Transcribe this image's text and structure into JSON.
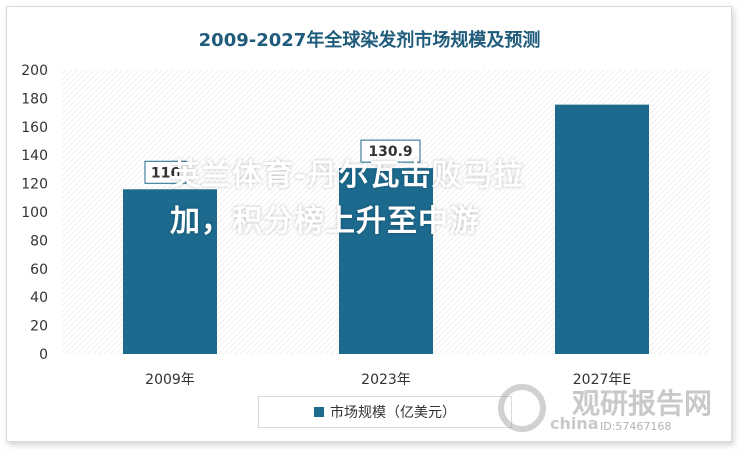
{
  "chart_data": {
    "type": "bar",
    "title": "2009-2027年全球染发剂市场规模及预测",
    "categories": [
      "2009年",
      "2023年",
      "2027年E"
    ],
    "series": [
      {
        "name": "市场规模（亿美元）",
        "values": [
          116,
          130.9,
          175.6
        ],
        "color": "#1c6a8e"
      }
    ],
    "data_labels": [
      "116",
      "130.9",
      ""
    ],
    "ylim": [
      0,
      200
    ],
    "yticks": [
      0,
      20,
      40,
      60,
      80,
      100,
      120,
      140,
      160,
      180,
      200
    ],
    "grid": false,
    "legend_position": "bottom"
  },
  "overlay": {
    "line1": "英兰体育-丹尔瓦击败马拉",
    "line2": "加，积分榜上升至中游"
  },
  "watermark": {
    "brand_cn": "观研报告网",
    "brand_en": "china",
    "id_text": "ID:57467168"
  }
}
